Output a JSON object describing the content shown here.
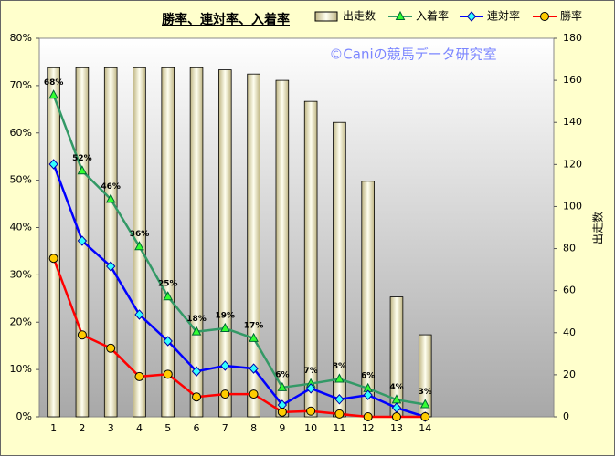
{
  "chart_data": {
    "type": "combo",
    "title": "勝率、連対率、入着率",
    "watermark": "©Caniの競馬データ研究室",
    "categories": [
      "1",
      "2",
      "3",
      "4",
      "5",
      "6",
      "7",
      "8",
      "9",
      "10",
      "11",
      "12",
      "13",
      "14",
      null,
      null,
      null,
      null
    ],
    "series": [
      {
        "name": "出走数",
        "type": "bar",
        "axis": "y2",
        "color": "#e8e0b0",
        "values": [
          166,
          166,
          166,
          166,
          166,
          166,
          165,
          163,
          160,
          150,
          140,
          112,
          57,
          39,
          null,
          null,
          null,
          null
        ]
      },
      {
        "name": "入着率",
        "type": "line",
        "marker": "triangle",
        "color": "#339966",
        "marker_color": "#33ff33",
        "values": [
          68,
          52,
          46,
          36,
          25.4,
          18,
          18.7,
          16.6,
          6.2,
          7,
          8,
          6,
          3.6,
          2.6,
          null,
          null,
          null,
          null
        ],
        "value_labels": [
          "68%",
          "52%",
          "46%",
          "36%",
          "25%",
          "18%",
          "19%",
          "17%",
          "6%",
          "7%",
          "8%",
          "6%",
          "4%",
          "3%",
          null,
          null,
          null,
          null
        ]
      },
      {
        "name": "連対率",
        "type": "line",
        "marker": "diamond",
        "color": "#0000ff",
        "marker_color": "#33ffff",
        "values": [
          53.4,
          37.2,
          31.8,
          21.6,
          16,
          9.6,
          10.8,
          10.2,
          2.5,
          6,
          3.7,
          4.6,
          1.9,
          0,
          null,
          null,
          null,
          null
        ]
      },
      {
        "name": "勝率",
        "type": "line",
        "marker": "circle",
        "color": "#ff0000",
        "marker_color": "#ffcc00",
        "values": [
          33.5,
          17.3,
          14.5,
          8.5,
          9,
          4.2,
          4.8,
          4.8,
          1,
          1.2,
          0.6,
          0,
          0,
          0,
          null,
          null,
          null,
          null
        ]
      }
    ],
    "ylim": [
      0,
      80
    ],
    "yticks": [
      {
        "value": 0,
        "label": "0%"
      },
      {
        "value": 10,
        "label": "10%"
      },
      {
        "value": 20,
        "label": "20%"
      },
      {
        "value": 30,
        "label": "30%"
      },
      {
        "value": 40,
        "label": "40%"
      },
      {
        "value": 50,
        "label": "50%"
      },
      {
        "value": 60,
        "label": "60%"
      },
      {
        "value": 70,
        "label": "70%"
      },
      {
        "value": 80,
        "label": "80%"
      }
    ],
    "y2lim": [
      0,
      180
    ],
    "y2ticks": [
      0,
      20,
      40,
      60,
      80,
      100,
      120,
      140,
      160,
      180
    ],
    "y2label": "出走数",
    "grid": false
  }
}
